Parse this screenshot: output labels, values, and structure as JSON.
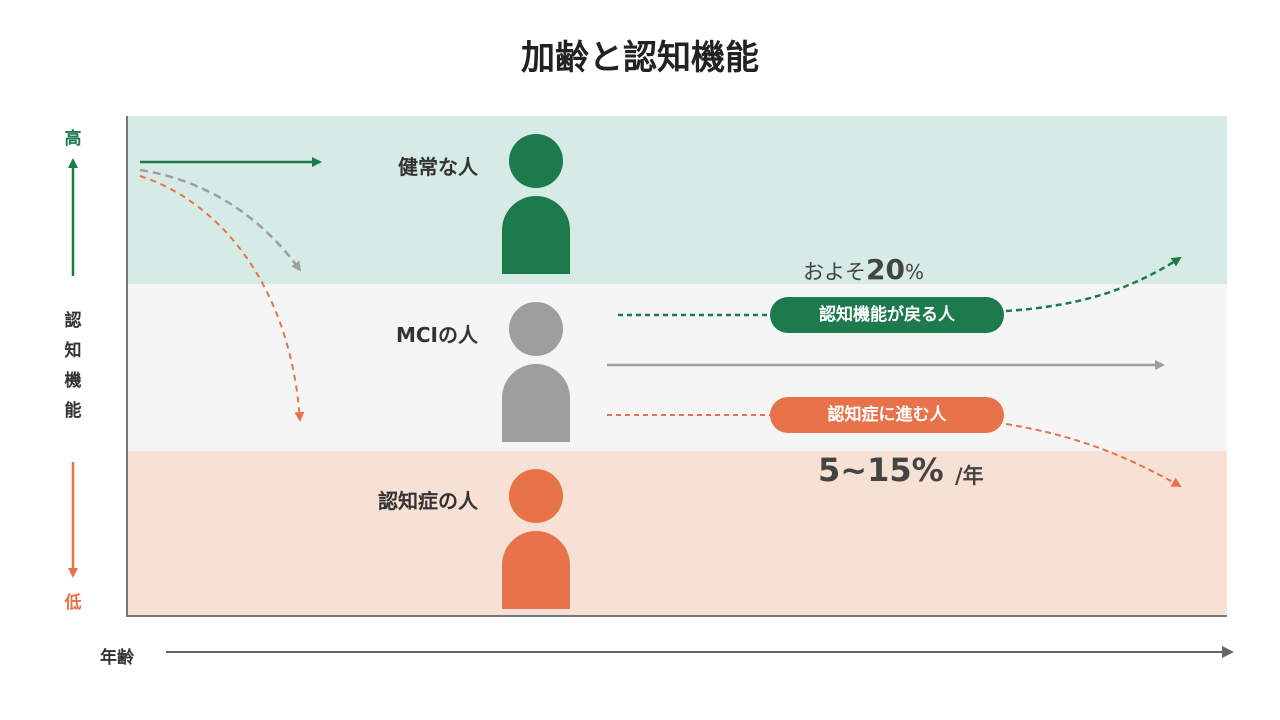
{
  "title": "加齢と認知機能",
  "y_axis": {
    "high": "高",
    "label": "認\n知\n機\n能",
    "low": "低"
  },
  "x_axis": {
    "label": "年齢"
  },
  "groups": {
    "healthy": "健常な人",
    "mci": "MCIの人",
    "dementia": "認知症の人"
  },
  "transitions": {
    "return": {
      "label": "認知機能が戻る人",
      "approx_prefix": "およそ",
      "approx_value": "20",
      "approx_unit": "%"
    },
    "progress": {
      "label": "認知症に進む人",
      "range": "5~15%",
      "unit": "/年"
    }
  },
  "colors": {
    "green": "#1c7a4c",
    "gray": "#9e9e9e",
    "orange": "#e8734a",
    "band_top": "#d7ebe6",
    "band_mid": "#f5f5f5",
    "band_bottom": "#f7e0d4"
  }
}
